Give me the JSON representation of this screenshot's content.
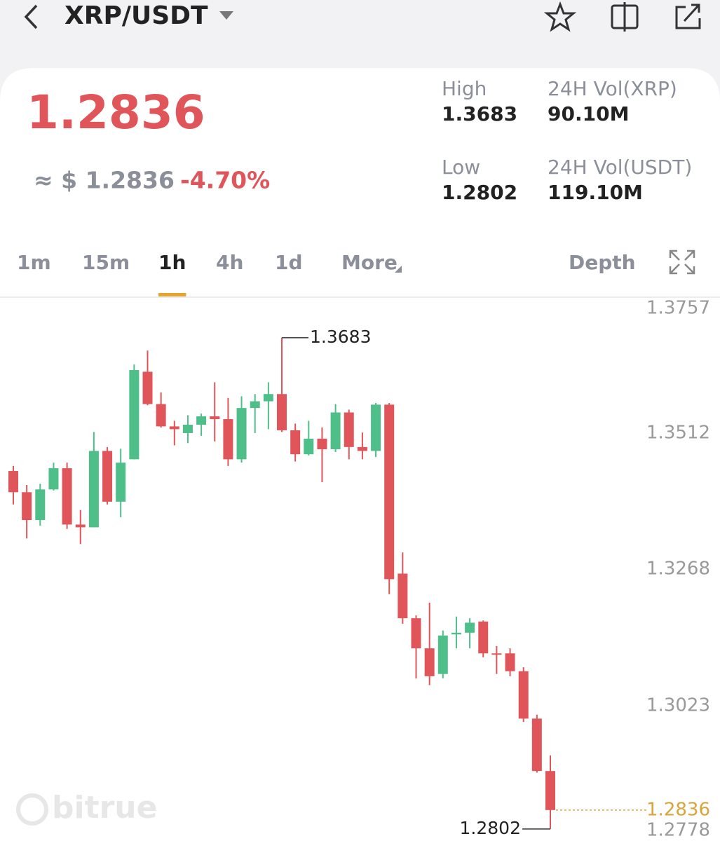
{
  "header": {
    "pair": "XRP/USDT"
  },
  "ticker": {
    "price": "1.2836",
    "approx": "≈ $ 1.2836",
    "change": "-4.70%",
    "stats": [
      {
        "label": "High",
        "value": "1.3683"
      },
      {
        "label": "24H Vol(XRP)",
        "value": "90.10M"
      },
      {
        "label": "Low",
        "value": "1.2802"
      },
      {
        "label": "24H Vol(USDT)",
        "value": "119.10M"
      }
    ]
  },
  "tabs": [
    {
      "label": "1m"
    },
    {
      "label": "15m"
    },
    {
      "label": "1h",
      "active": true
    },
    {
      "label": "4h"
    },
    {
      "label": "1d"
    },
    {
      "label": "More"
    }
  ],
  "depth": "Depth",
  "watermark": "bitrue",
  "chart_data": {
    "type": "candlestick",
    "up_color": "#4fbf8a",
    "down_color": "#e0555a",
    "open": [
      1.3444,
      1.3406,
      1.3356,
      1.3411,
      1.3449,
      1.3348,
      1.3343,
      1.348,
      1.3389,
      1.3465,
      1.3622,
      1.3564,
      1.3524,
      1.3512,
      1.3527,
      1.3542,
      1.3537,
      1.3465,
      1.3557,
      1.3569,
      1.3582,
      1.3517,
      1.3474,
      1.3502,
      1.3483,
      1.3549,
      1.3487,
      1.348,
      1.3563,
      1.326,
      1.318,
      1.3126,
      1.308,
      1.3151,
      1.3154,
      1.3174,
      1.3117,
      1.3117,
      1.3085,
      1.3,
      1.2906
    ],
    "high": [
      1.3453,
      1.3419,
      1.3421,
      1.3459,
      1.3459,
      1.3374,
      1.3514,
      1.3487,
      1.3484,
      1.3635,
      1.366,
      1.3585,
      1.3534,
      1.3544,
      1.3547,
      1.3603,
      1.3575,
      1.3578,
      1.3582,
      1.3603,
      1.3683,
      1.3529,
      1.3534,
      1.3522,
      1.3564,
      1.3554,
      1.3513,
      1.3566,
      1.3566,
      1.3298,
      1.3185,
      1.3208,
      1.3158,
      1.3183,
      1.318,
      1.3176,
      1.313,
      1.3126,
      1.3092,
      1.3007,
      1.2934
    ],
    "low": [
      1.3384,
      1.3323,
      1.3346,
      1.3409,
      1.334,
      1.3313,
      1.3343,
      1.3384,
      1.3361,
      1.3465,
      1.3562,
      1.3522,
      1.349,
      1.3494,
      1.3507,
      1.3497,
      1.3453,
      1.3459,
      1.3512,
      1.3519,
      1.3514,
      1.3461,
      1.3472,
      1.3424,
      1.3478,
      1.3465,
      1.3465,
      1.3469,
      1.3223,
      1.317,
      1.3072,
      1.306,
      1.3072,
      1.3126,
      1.3126,
      1.311,
      1.308,
      1.3076,
      1.2994,
      1.2903,
      1.2802
    ],
    "close": [
      1.3406,
      1.3356,
      1.3411,
      1.3449,
      1.3348,
      1.3343,
      1.348,
      1.3389,
      1.3459,
      1.3625,
      1.3564,
      1.3524,
      1.3519,
      1.3527,
      1.3542,
      1.3537,
      1.3465,
      1.3557,
      1.3569,
      1.3582,
      1.3517,
      1.3474,
      1.3502,
      1.3483,
      1.3549,
      1.3487,
      1.348,
      1.3563,
      1.325,
      1.318,
      1.3126,
      1.3076,
      1.3149,
      1.3154,
      1.3172,
      1.3117,
      1.3116,
      1.3085,
      1.3,
      1.2906,
      1.2836
    ],
    "ylim": [
      1.2778,
      1.3757
    ],
    "yticks": [
      1.3757,
      1.3512,
      1.3268,
      1.3023,
      1.2778
    ],
    "max_mark": 1.3683,
    "min_mark": 1.2802,
    "last_price": 1.2836,
    "last_price_color": "#d9a43a"
  }
}
